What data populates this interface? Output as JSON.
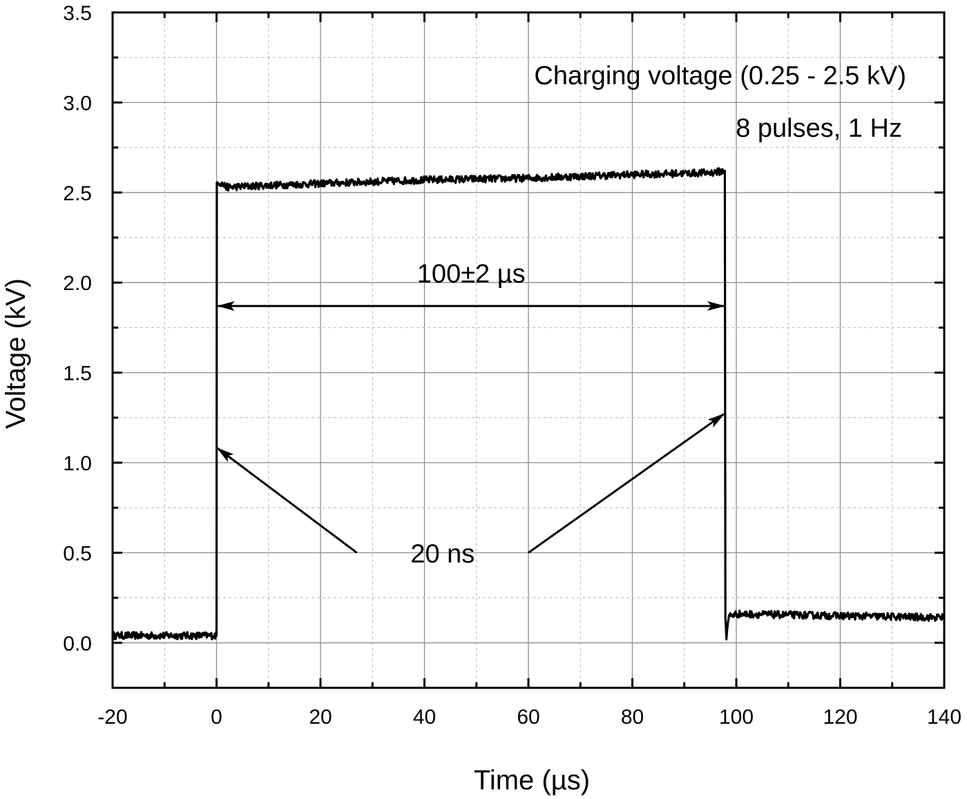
{
  "chart_data": {
    "type": "line",
    "title": "",
    "xlabel": "Time (µs)",
    "ylabel": "Voltage (kV)",
    "xlim": [
      -20,
      140
    ],
    "ylim": [
      -0.25,
      3.5
    ],
    "x_ticks": [
      -20,
      0,
      20,
      40,
      60,
      80,
      100,
      120,
      140
    ],
    "y_ticks": [
      0.0,
      0.5,
      1.0,
      1.5,
      2.0,
      2.5,
      3.0,
      3.5
    ],
    "x_tick_labels": [
      "-20",
      "0",
      "20",
      "40",
      "60",
      "80",
      "100",
      "120",
      "140"
    ],
    "y_tick_labels": [
      "0.0",
      "0.5",
      "1.0",
      "1.5",
      "2.0",
      "2.5",
      "3.0",
      "3.5"
    ],
    "grid": true,
    "series": [
      {
        "x": [
          -20,
          -10,
          0,
          0.05,
          0.3,
          2,
          10,
          20,
          40,
          60,
          80,
          95,
          97.8,
          97.9,
          98.1,
          98.6,
          100,
          120,
          140
        ],
        "y": [
          0.04,
          0.04,
          0.04,
          2.55,
          2.56,
          2.53,
          2.54,
          2.55,
          2.57,
          2.58,
          2.6,
          2.61,
          2.62,
          0.15,
          0.03,
          0.15,
          0.16,
          0.15,
          0.14
        ]
      }
    ],
    "annotations": {
      "charging_voltage": "Charging voltage (0.25 - 2.5 kV)",
      "pulses": "8 pulses, 1 Hz",
      "pulse_width": "100±2 µs",
      "rise_fall": "20 ns"
    }
  }
}
